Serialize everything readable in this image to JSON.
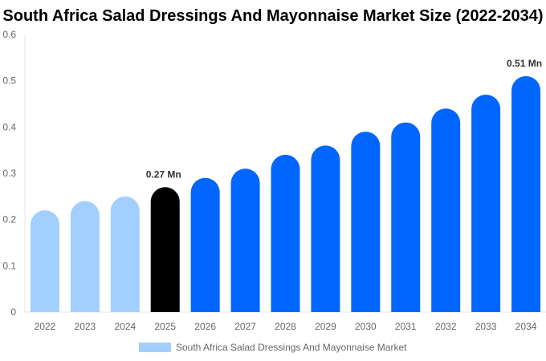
{
  "chart_data": {
    "type": "bar",
    "title": "South Africa Salad Dressings And Mayonnaise Market Size (2022-2034)",
    "categories": [
      "2022",
      "2023",
      "2024",
      "2025",
      "2026",
      "2027",
      "2028",
      "2029",
      "2030",
      "2031",
      "2032",
      "2033",
      "2034"
    ],
    "series": [
      {
        "name": "South Africa Salad Dressings And Mayonnaise Market",
        "values": [
          0.22,
          0.24,
          0.25,
          0.27,
          0.29,
          0.31,
          0.34,
          0.36,
          0.39,
          0.41,
          0.44,
          0.47,
          0.51
        ]
      }
    ],
    "ylim": [
      0,
      0.6
    ],
    "yticks": [
      "0",
      "0.1",
      "0.2",
      "0.3",
      "0.4",
      "0.5",
      "0.6"
    ],
    "data_labels": {
      "3": "0.27 Mn",
      "12": "0.51 Mn"
    },
    "bar_colors": {
      "historical": "#a3cfff",
      "current": "#000000",
      "forecast": "#0066ff"
    },
    "grid": false,
    "legend_position": "bottom"
  }
}
